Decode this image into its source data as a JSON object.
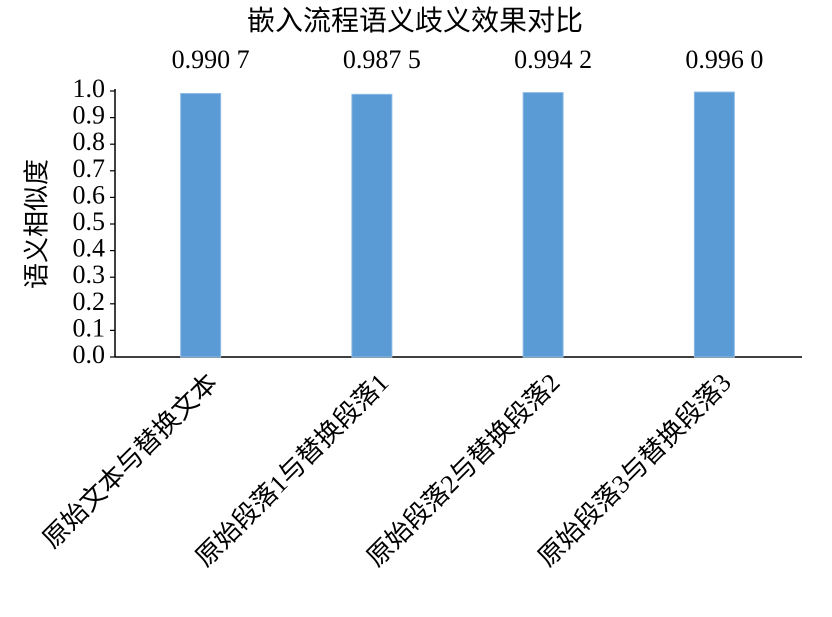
{
  "chart_data": {
    "type": "bar",
    "title": "嵌入流程语义歧义效果对比",
    "y_label": "语义相似度",
    "categories": [
      "原始文本与替换文本",
      "原始段落1与替换段落1",
      "原始段落2与替换段落2",
      "原始段落3与替换段落3"
    ],
    "values": [
      0.9907,
      0.9875,
      0.9942,
      0.996
    ],
    "value_labels": [
      "0.990 7",
      "0.987 5",
      "0.994 2",
      "0.996 0"
    ],
    "color": "#5b9bd5",
    "ylim": [
      0,
      1.0
    ],
    "yticks": [
      {
        "value": 0,
        "label": "0.0"
      },
      0.1,
      0.2,
      0.3,
      0.4,
      0.5,
      0.6,
      0.7,
      0.8,
      0.9,
      {
        "value": 1,
        "label": "1.0"
      }
    ],
    "grid": false
  }
}
